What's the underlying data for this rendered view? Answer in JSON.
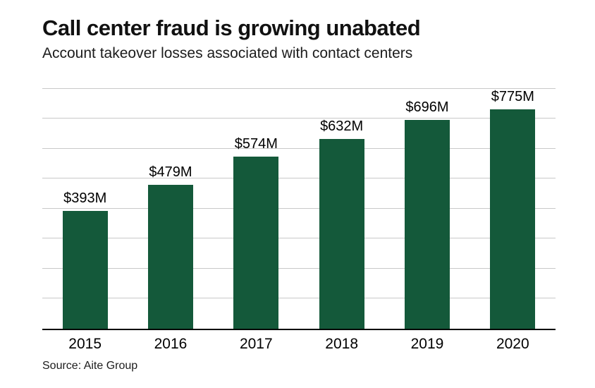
{
  "chart_data": {
    "type": "bar",
    "title": "Call center fraud is growing unabated",
    "subtitle": "Account takeover losses associated with contact centers",
    "categories": [
      "2015",
      "2016",
      "2017",
      "2018",
      "2019",
      "2020"
    ],
    "values": [
      393,
      479,
      574,
      632,
      696,
      775
    ],
    "value_labels": [
      "$393M",
      "$479M",
      "$574M",
      "$632M",
      "$696M",
      "$775M"
    ],
    "unit": "$M",
    "ylabel": "",
    "xlabel": "",
    "ylim": [
      0,
      800
    ],
    "gridline_step": 100,
    "grid": true,
    "legend": false,
    "source": "Source: Aite Group",
    "colors": {
      "bar": "#14593a",
      "gridline": "#c9c9c9",
      "axis": "#000000",
      "text": "#111111"
    }
  }
}
